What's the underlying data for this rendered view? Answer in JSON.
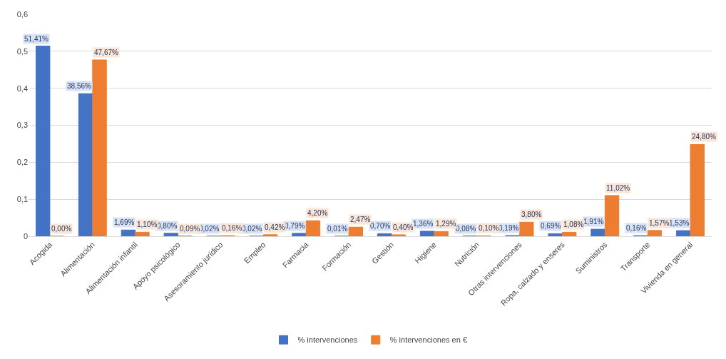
{
  "chart_data": {
    "type": "bar",
    "categories": [
      "Acogida",
      "Alimentación",
      "Alimentación infantil",
      "Apoyo psicológico",
      "Asesoramiento jurídico",
      "Empleo",
      "Farmacia",
      "Formación",
      "Gestión",
      "Higiene",
      "Nutrición",
      "Otras intervenciones",
      "Ropa, calzado y enseres",
      "Suministros",
      "Transporte",
      "Vivienda en general"
    ],
    "series": [
      {
        "name": "% intervenciones",
        "color": "#4472c4",
        "values": [
          0.5141,
          0.3856,
          0.0169,
          0.008,
          0.0002,
          0.0002,
          0.0079,
          0.0001,
          0.007,
          0.0136,
          0.0008,
          0.0019,
          0.0069,
          0.0191,
          0.0016,
          0.0153
        ],
        "value_labels": [
          "51,41%",
          "38,56%",
          "1,69%",
          "0,80%",
          "0,02%",
          "0,02%",
          "0,79%",
          "0,01%",
          "0,70%",
          "1,36%",
          "0,08%",
          "0,19%",
          "0,69%",
          "1,91%",
          "0,16%",
          "1,53%"
        ]
      },
      {
        "name": "% intervenciones en €",
        "color": "#ed7d31",
        "values": [
          0.0,
          0.4767,
          0.011,
          0.0009,
          0.0016,
          0.0042,
          0.042,
          0.0247,
          0.004,
          0.0129,
          0.001,
          0.038,
          0.0108,
          0.1102,
          0.0157,
          0.248
        ],
        "value_labels": [
          "0,00%",
          "47,67%",
          "1,10%",
          "0,09%",
          "0,16%",
          "0,42%",
          "4,20%",
          "2,47%",
          "0,40%",
          "1,29%",
          "0,10%",
          "3,80%",
          "1,08%",
          "11,02%",
          "1,57%",
          "24,80%"
        ]
      }
    ],
    "ylim": [
      0,
      0.6
    ],
    "yticks": [
      0,
      {
        "value": 0.1,
        "label": "0,1"
      },
      {
        "value": 0.2,
        "label": "0,2"
      },
      {
        "value": 0.3,
        "label": "0,3"
      },
      {
        "value": 0.4,
        "label": "0,4"
      },
      {
        "value": 0.5,
        "label": "0,5"
      },
      {
        "value": 0.6,
        "label": "0,6"
      }
    ],
    "grid": "y",
    "legend": "bottom"
  }
}
